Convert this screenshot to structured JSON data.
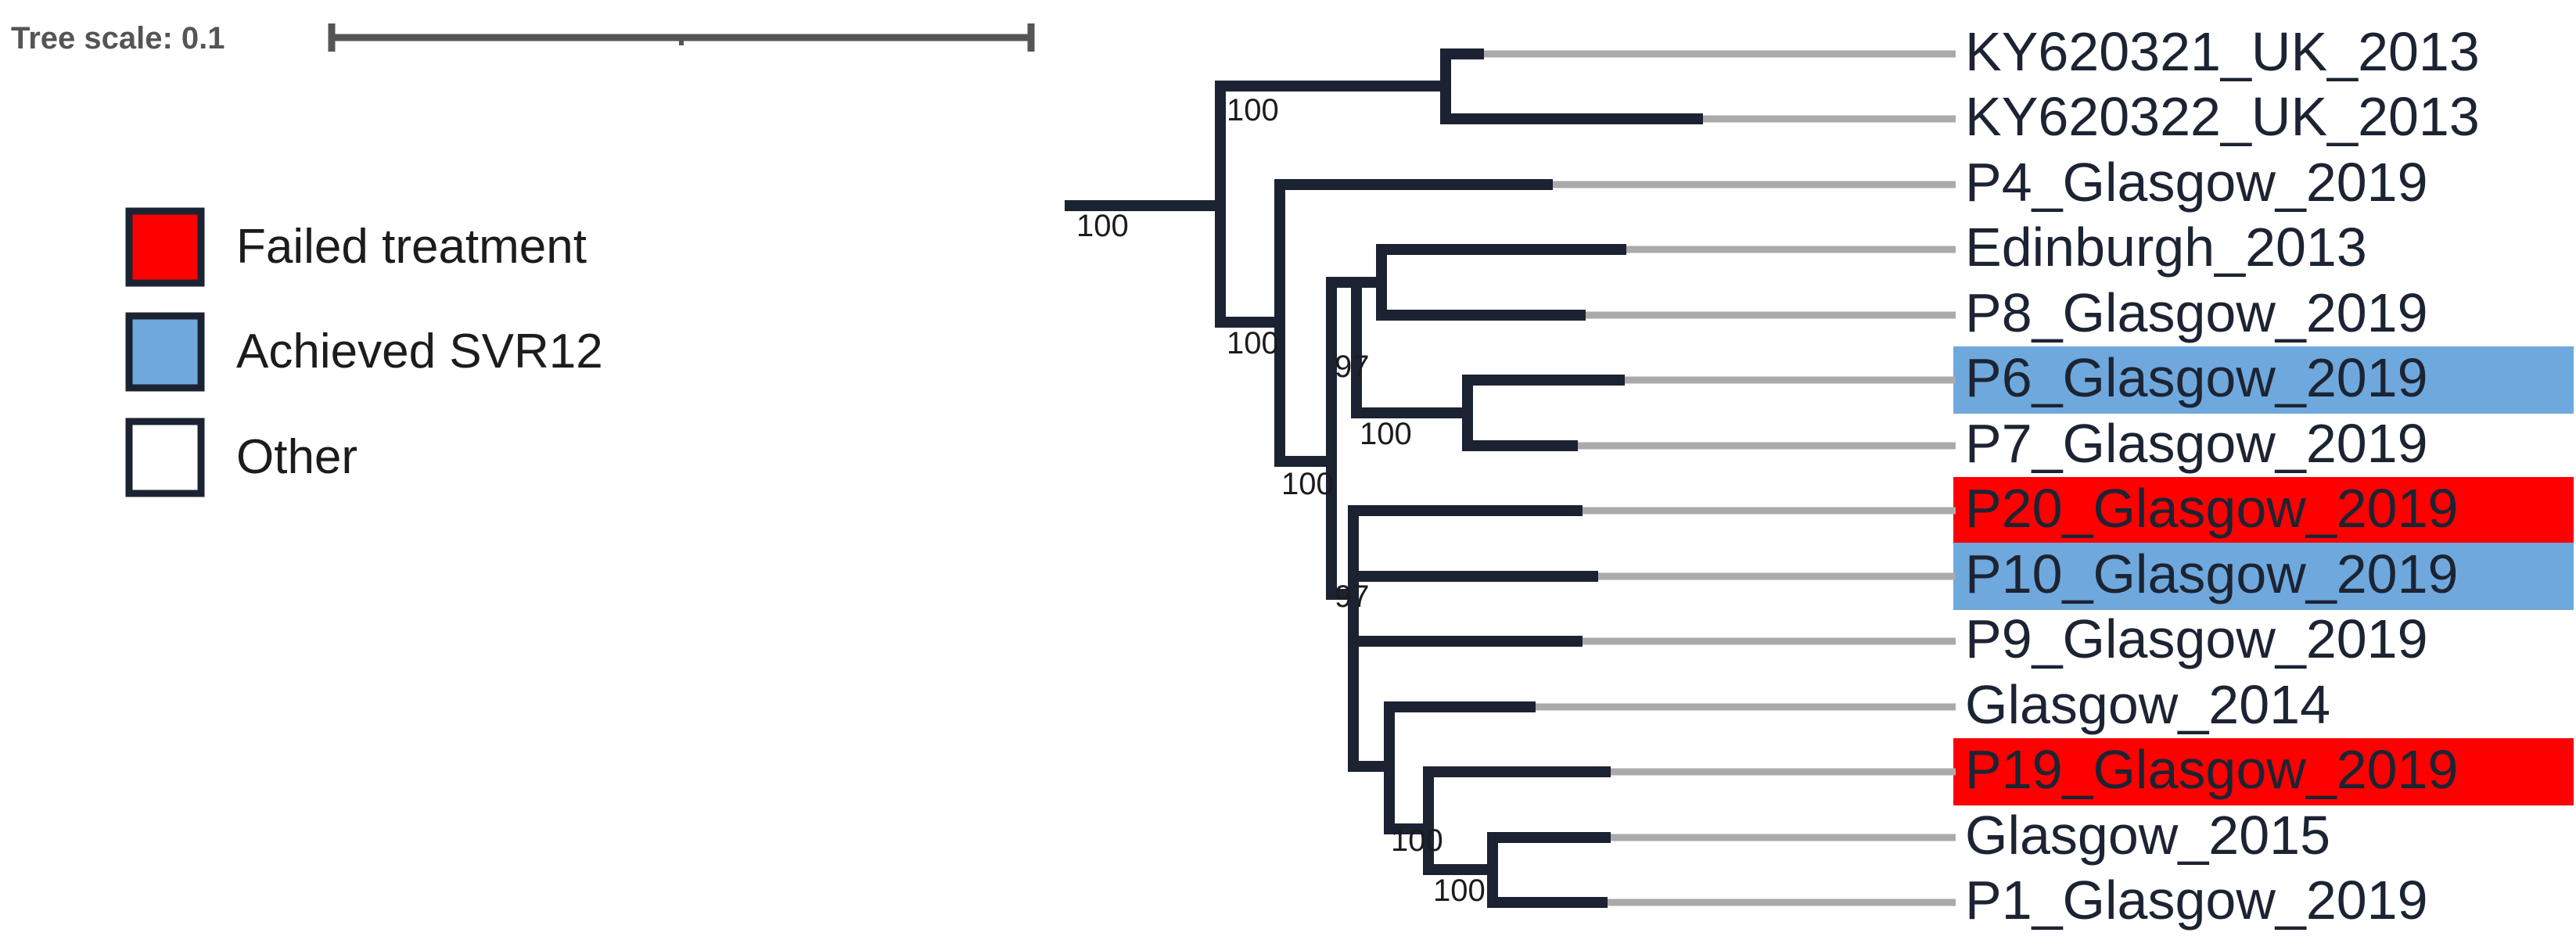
{
  "colors": {
    "branch": "#1b2333",
    "leader": "#aaaaaa",
    "failed": "#ff0000",
    "svr12": "#6fa8dc",
    "other": "#ffffff",
    "scale": "#555555"
  },
  "scale": {
    "label": "Tree scale: 0.1"
  },
  "legend": [
    {
      "label": "Failed treatment",
      "color": "#ff0000"
    },
    {
      "label": "Achieved SVR12",
      "color": "#6fa8dc"
    },
    {
      "label": "Other",
      "color": "#ffffff"
    }
  ],
  "leaves": [
    {
      "label": "KY620321_UK_2013",
      "category": "other"
    },
    {
      "label": "KY620322_UK_2013",
      "category": "other"
    },
    {
      "label": "P4_Glasgow_2019",
      "category": "other"
    },
    {
      "label": "Edinburgh_2013",
      "category": "other"
    },
    {
      "label": "P8_Glasgow_2019",
      "category": "other"
    },
    {
      "label": "P6_Glasgow_2019",
      "category": "svr12"
    },
    {
      "label": "P7_Glasgow_2019",
      "category": "other"
    },
    {
      "label": "P20_Glasgow_2019",
      "category": "failed"
    },
    {
      "label": "P10_Glasgow_2019",
      "category": "svr12"
    },
    {
      "label": "P9_Glasgow_2019",
      "category": "other"
    },
    {
      "label": "Glasgow_2014",
      "category": "other"
    },
    {
      "label": "P19_Glasgow_2019",
      "category": "failed"
    },
    {
      "label": "Glasgow_2015",
      "category": "other"
    },
    {
      "label": "P1_Glasgow_2019",
      "category": "other"
    }
  ],
  "bootstrap": {
    "root": "100",
    "uk_clade": "100",
    "main_clade": "100",
    "inner_clade": "100",
    "edin_p8_p6_p7": "97",
    "p6_p7": "100",
    "glasgow_clade": "97",
    "g2015_p1_p19": "100",
    "g2015_p1": "100"
  }
}
